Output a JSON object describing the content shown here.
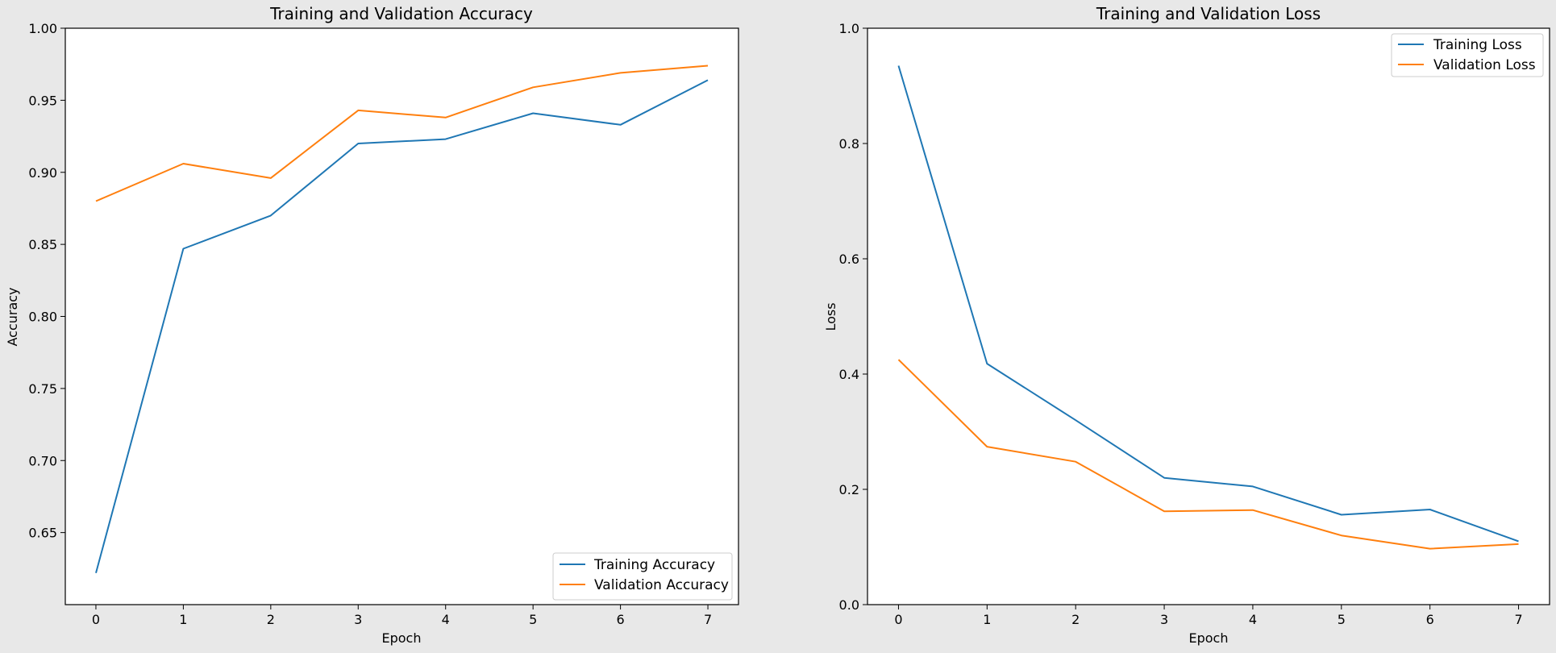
{
  "chart_data": [
    {
      "type": "line",
      "title": "Training and Validation Accuracy",
      "xlabel": "Epoch",
      "ylabel": "Accuracy",
      "x": [
        0,
        1,
        2,
        3,
        4,
        5,
        6,
        7
      ],
      "xlim": [
        -0.35,
        7.35
      ],
      "ylim": [
        0.6,
        1.0
      ],
      "xticks": [
        0,
        1,
        2,
        3,
        4,
        5,
        6,
        7
      ],
      "yticks": [
        0.65,
        0.7,
        0.75,
        0.8,
        0.85,
        0.9,
        0.95,
        1.0
      ],
      "ytick_labels": [
        "0.65",
        "0.70",
        "0.75",
        "0.80",
        "0.85",
        "0.90",
        "0.95",
        "1.00"
      ],
      "grid": false,
      "legend_position": "lower-right",
      "series": [
        {
          "name": "Training Accuracy",
          "color": "#1f77b4",
          "values": [
            0.622,
            0.847,
            0.87,
            0.92,
            0.923,
            0.941,
            0.933,
            0.964
          ]
        },
        {
          "name": "Validation Accuracy",
          "color": "#ff7f0e",
          "values": [
            0.88,
            0.906,
            0.896,
            0.943,
            0.938,
            0.959,
            0.969,
            0.974
          ]
        }
      ]
    },
    {
      "type": "line",
      "title": "Training and Validation Loss",
      "xlabel": "Epoch",
      "ylabel": "Loss",
      "x": [
        0,
        1,
        2,
        3,
        4,
        5,
        6,
        7
      ],
      "xlim": [
        -0.35,
        7.35
      ],
      "ylim": [
        0.0,
        1.0
      ],
      "xticks": [
        0,
        1,
        2,
        3,
        4,
        5,
        6,
        7
      ],
      "yticks": [
        0.0,
        0.2,
        0.4,
        0.6,
        0.8,
        1.0
      ],
      "ytick_labels": [
        "0.0",
        "0.2",
        "0.4",
        "0.6",
        "0.8",
        "1.0"
      ],
      "grid": false,
      "legend_position": "upper-right",
      "series": [
        {
          "name": "Training Loss",
          "color": "#1f77b4",
          "values": [
            0.935,
            0.418,
            0.32,
            0.22,
            0.205,
            0.156,
            0.165,
            0.11
          ]
        },
        {
          "name": "Validation Loss",
          "color": "#ff7f0e",
          "values": [
            0.425,
            0.274,
            0.248,
            0.162,
            0.164,
            0.12,
            0.097,
            0.105
          ]
        }
      ]
    }
  ]
}
